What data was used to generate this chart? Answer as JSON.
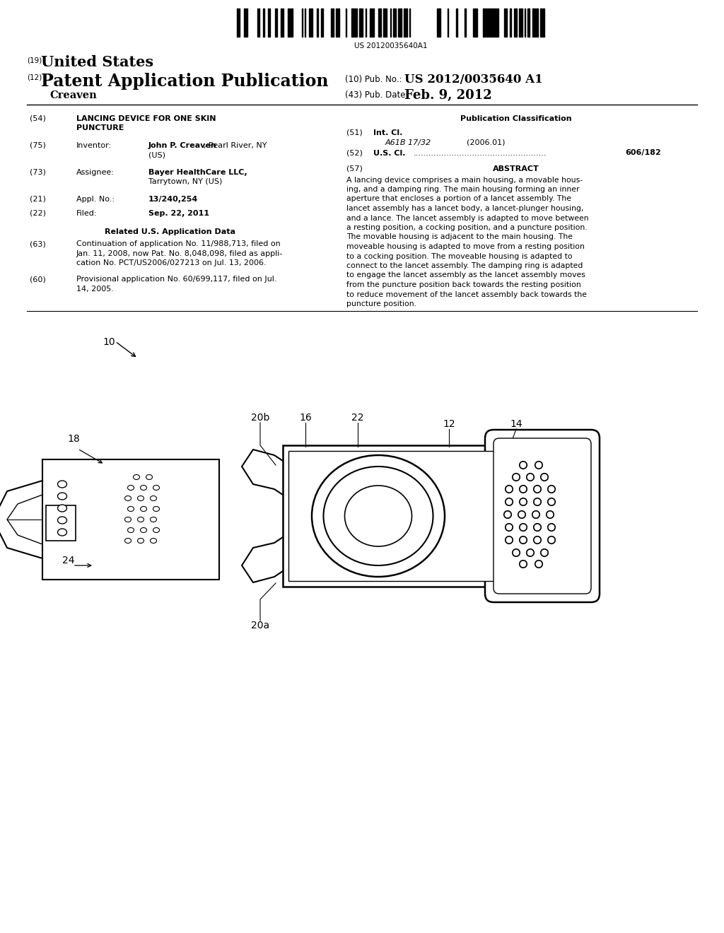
{
  "background_color": "#ffffff",
  "barcode_text": "US 20120035640A1",
  "header": {
    "line19": "(19)",
    "line19_text": "United States",
    "line12": "(12)",
    "line12_text": "Patent Application Publication",
    "line10_label": "(10) Pub. No.:",
    "line10_value": "US 2012/0035640 A1",
    "inventor_label": "Creaven",
    "line43_label": "(43) Pub. Date:",
    "line43_value": "Feb. 9, 2012"
  },
  "left_col": {
    "field54_num": "(54)",
    "field54_title_1": "LANCING DEVICE FOR ONE SKIN",
    "field54_title_2": "PUNCTURE",
    "field75_num": "(75)",
    "field75_label": "Inventor:",
    "field75_value_1": "John P. Creaven, Pearl River, NY",
    "field75_value_bold": "John P. Creaven",
    "field75_value_rest": ", Pearl River, NY",
    "field75_value_2": "(US)",
    "field73_num": "(73)",
    "field73_label": "Assignee:",
    "field73_value_1": "Bayer HealthCare LLC,",
    "field73_value_2": "Tarrytown, NY (US)",
    "field21_num": "(21)",
    "field21_label": "Appl. No.:",
    "field21_value": "13/240,254",
    "field22_num": "(22)",
    "field22_label": "Filed:",
    "field22_value": "Sep. 22, 2011",
    "related_title": "Related U.S. Application Data",
    "field63_num": "(63)",
    "field63_lines": [
      "Continuation of application No. 11/988,713, filed on",
      "Jan. 11, 2008, now Pat. No. 8,048,098, filed as appli-",
      "cation No. PCT/US2006/027213 on Jul. 13, 2006."
    ],
    "field60_num": "(60)",
    "field60_lines": [
      "Provisional application No. 60/699,117, filed on Jul.",
      "14, 2005."
    ]
  },
  "right_col": {
    "pub_class_title": "Publication Classification",
    "field51_num": "(51)",
    "field51_label": "Int. Cl.",
    "field51_class": "A61B 17/32",
    "field51_year": "(2006.01)",
    "field52_num": "(52)",
    "field52_label": "U.S. Cl.",
    "field52_value": "606/182",
    "field57_num": "(57)",
    "field57_title": "ABSTRACT",
    "abstract_lines": [
      "A lancing device comprises a main housing, a movable hous-",
      "ing, and a damping ring. The main housing forming an inner",
      "aperture that encloses a portion of a lancet assembly. The",
      "lancet assembly has a lancet body, a lancet-plunger housing,",
      "and a lance. The lancet assembly is adapted to move between",
      "a resting position, a cocking position, and a puncture position.",
      "The movable housing is adjacent to the main housing. The",
      "moveable housing is adapted to move from a resting position",
      "to a cocking position. The moveable housing is adapted to",
      "connect to the lancet assembly. The damping ring is adapted",
      "to engage the lancet assembly as the lancet assembly moves",
      "from the puncture position back towards the resting position",
      "to reduce movement of the lancet assembly back towards the",
      "puncture position."
    ]
  }
}
